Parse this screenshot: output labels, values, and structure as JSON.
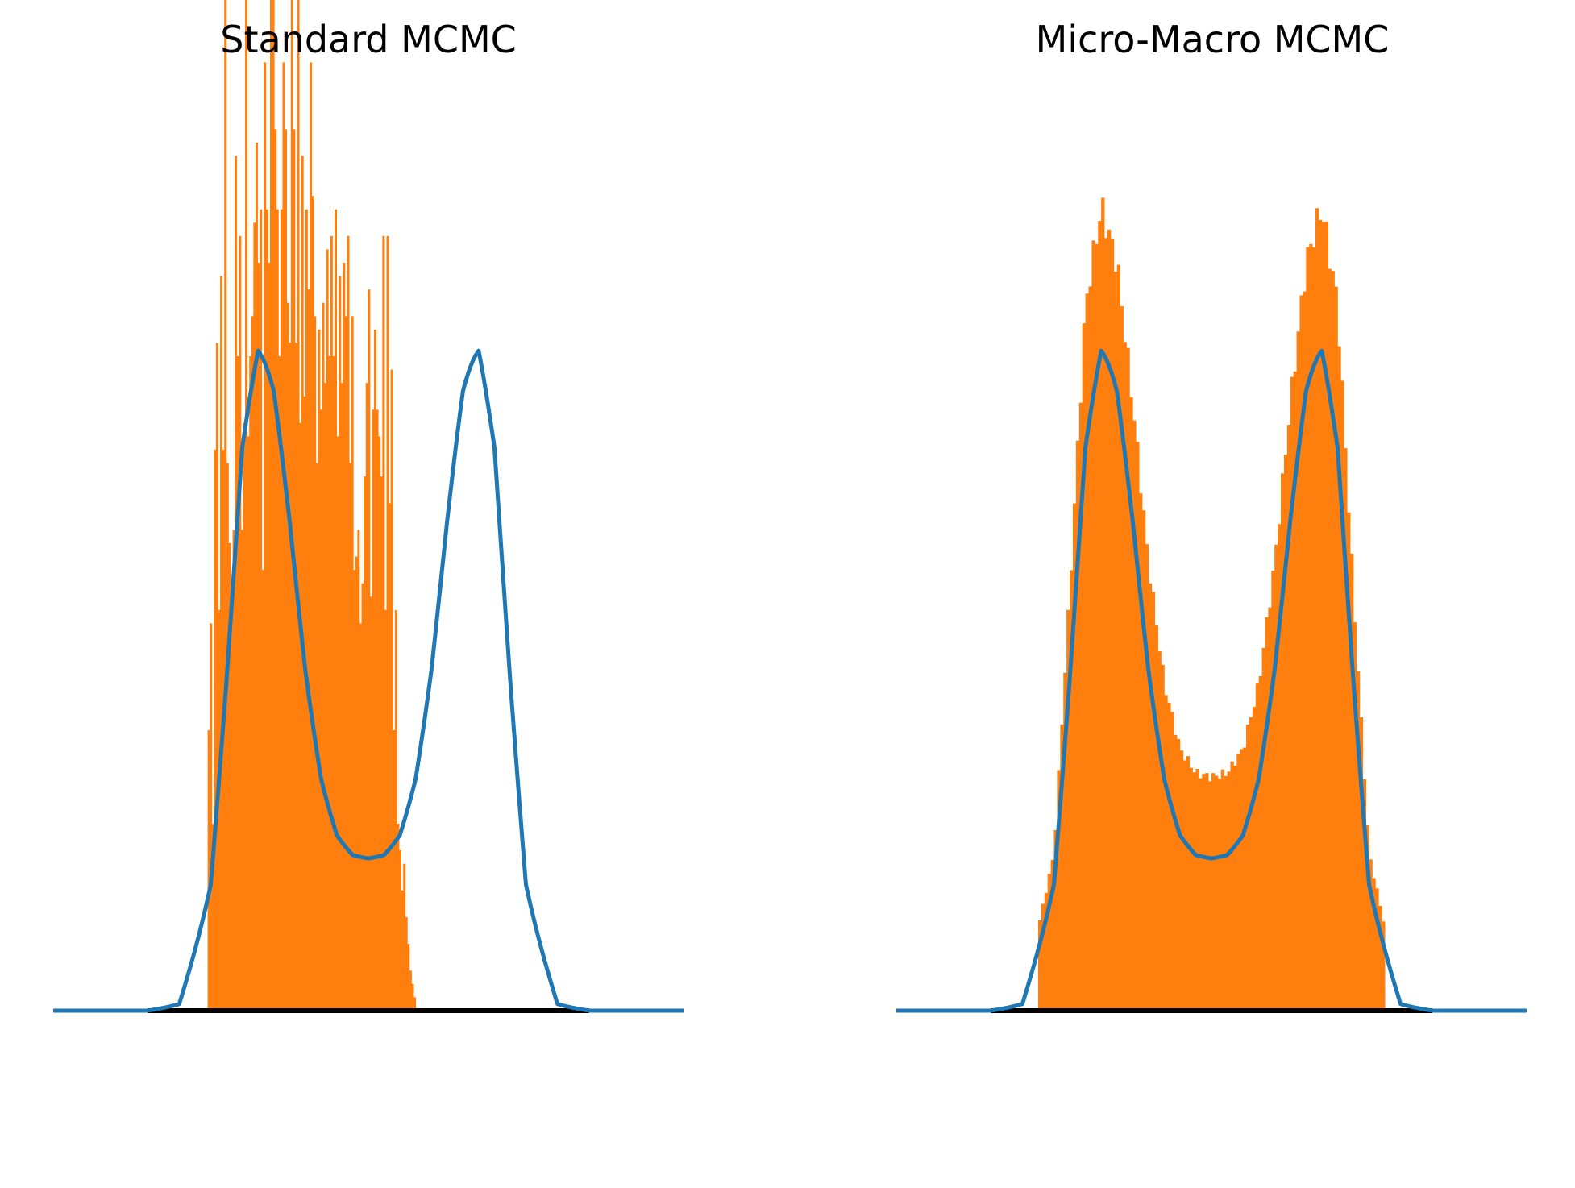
{
  "colors": {
    "histogram": "#ff7f0e",
    "density_curve": "#1f77b4",
    "baseline": "#000000",
    "background": "#ffffff"
  },
  "chart_data": [
    {
      "type": "bar",
      "title": "Standard MCMC",
      "xlabel": "",
      "ylabel": "",
      "axes_visible": false,
      "grid": false,
      "xlim": [
        -5,
        5
      ],
      "ylim": [
        0,
        0.7
      ],
      "curve": {
        "description_type": "line",
        "x": [
          -5.0,
          -4.0,
          -3.5,
          -3.0,
          -2.5,
          -2.25,
          -2.0,
          -1.75,
          -1.5,
          -1.25,
          -1.0,
          -0.75,
          -0.5,
          -0.25,
          0.0,
          0.25,
          0.5,
          0.75,
          1.0,
          1.25,
          1.5,
          1.75,
          2.0,
          2.25,
          2.5,
          3.0,
          3.5,
          4.0,
          5.0
        ],
        "y": [
          0.0,
          0.0,
          0.0,
          0.006,
          0.118,
          0.314,
          0.529,
          0.602,
          0.56,
          0.455,
          0.335,
          0.245,
          0.196,
          0.178,
          0.175,
          0.178,
          0.196,
          0.245,
          0.335,
          0.455,
          0.56,
          0.602,
          0.529,
          0.314,
          0.118,
          0.006,
          0.0,
          0.0,
          0.0
        ]
      },
      "histogram": {
        "bin_edges_range": [
          -2.55,
          0.75
        ],
        "bin_count": 100,
        "values": [
          0.21,
          0.29,
          0.14,
          0.42,
          0.5,
          0.3,
          0.55,
          0.42,
          0.78,
          0.41,
          0.35,
          0.32,
          0.36,
          0.64,
          0.49,
          0.58,
          0.36,
          0.44,
          0.91,
          0.43,
          0.49,
          0.52,
          0.59,
          0.65,
          0.56,
          0.6,
          0.33,
          0.71,
          0.6,
          0.56,
          0.8,
          0.82,
          0.66,
          0.6,
          0.49,
          0.6,
          0.71,
          0.66,
          0.53,
          0.5,
          0.83,
          0.66,
          0.5,
          0.8,
          0.44,
          0.64,
          0.46,
          0.6,
          0.54,
          0.71,
          0.61,
          0.52,
          0.41,
          0.51,
          0.45,
          0.53,
          0.47,
          0.57,
          0.49,
          0.58,
          0.49,
          0.6,
          0.43,
          0.55,
          0.47,
          0.56,
          0.52,
          0.58,
          0.41,
          0.52,
          0.33,
          0.34,
          0.36,
          0.29,
          0.32,
          0.4,
          0.47,
          0.54,
          0.31,
          0.45,
          0.51,
          0.45,
          0.43,
          0.4,
          0.58,
          0.3,
          0.58,
          0.38,
          0.48,
          0.21,
          0.3,
          0.14,
          0.12,
          0.09,
          0.11,
          0.07,
          0.05,
          0.03,
          0.02,
          0.01
        ]
      }
    },
    {
      "type": "bar",
      "title": "Micro-Macro MCMC",
      "xlabel": "",
      "ylabel": "",
      "axes_visible": false,
      "grid": false,
      "xlim": [
        -5,
        5
      ],
      "ylim": [
        0,
        0.7
      ],
      "curve": {
        "description_type": "line",
        "x": [
          -5.0,
          -4.0,
          -3.5,
          -3.0,
          -2.5,
          -2.25,
          -2.0,
          -1.75,
          -1.5,
          -1.25,
          -1.0,
          -0.75,
          -0.5,
          -0.25,
          0.0,
          0.25,
          0.5,
          0.75,
          1.0,
          1.25,
          1.5,
          1.75,
          2.0,
          2.25,
          2.5,
          3.0,
          3.5,
          4.0,
          5.0
        ],
        "y": [
          0.0,
          0.0,
          0.0,
          0.006,
          0.118,
          0.314,
          0.529,
          0.602,
          0.56,
          0.455,
          0.335,
          0.245,
          0.196,
          0.178,
          0.175,
          0.178,
          0.196,
          0.245,
          0.335,
          0.455,
          0.56,
          0.602,
          0.529,
          0.314,
          0.118,
          0.006,
          0.0,
          0.0,
          0.0
        ]
      },
      "histogram": {
        "bin_edges_range": [
          -2.75,
          2.75
        ],
        "bin_count": 110,
        "follows_curve": true
      }
    }
  ]
}
